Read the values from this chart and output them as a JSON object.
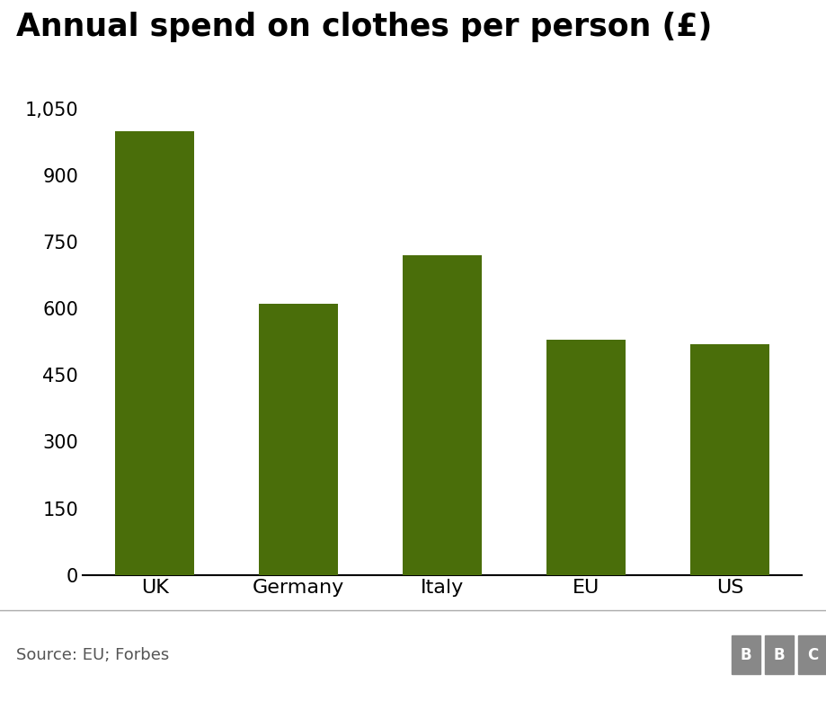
{
  "categories": [
    "UK",
    "Germany",
    "Italy",
    "EU",
    "US"
  ],
  "values": [
    1000,
    610,
    720,
    530,
    520
  ],
  "bar_color": "#4a6e0a",
  "title": "Annual spend on clothes per person (£)",
  "title_fontsize": 25,
  "yticks": [
    0,
    150,
    300,
    450,
    600,
    750,
    900,
    1050
  ],
  "ylim": [
    0,
    1090
  ],
  "tick_fontsize": 15,
  "xtick_fontsize": 16,
  "source_text": "Source: EU; Forbes",
  "source_fontsize": 13,
  "background_color": "#ffffff",
  "bbc_box_color": "#888888",
  "axis_line_color": "#000000",
  "footer_line_color": "#aaaaaa",
  "bar_width": 0.55
}
